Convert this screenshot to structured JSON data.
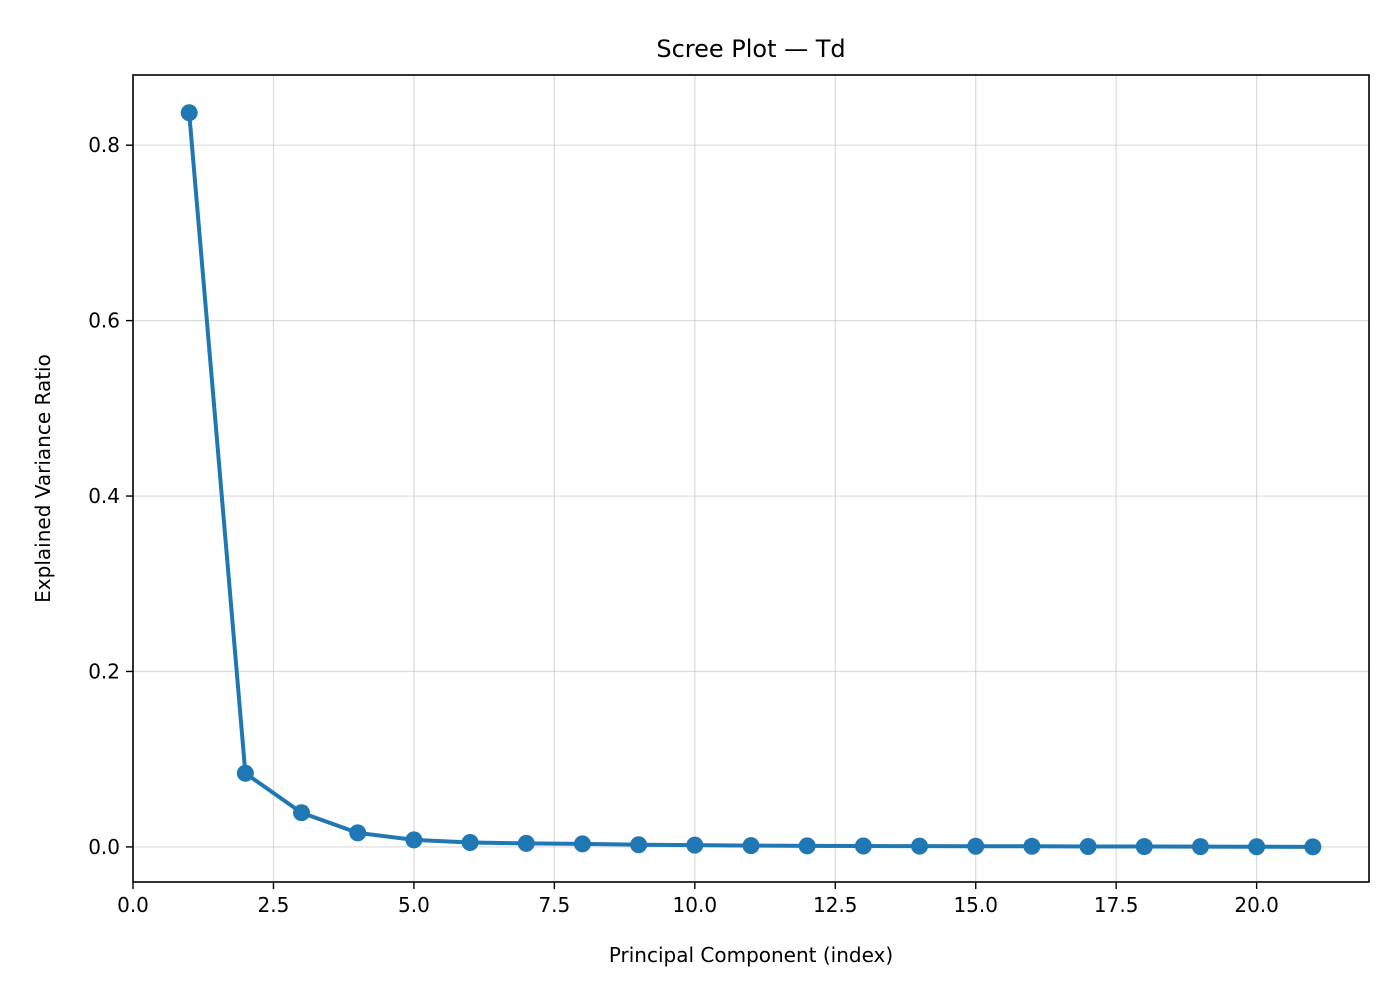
{
  "chart_data": {
    "type": "line",
    "title": "Scree Plot — Td",
    "xlabel": "Principal Component (index)",
    "ylabel": "Explained Variance Ratio",
    "xlim": [
      0,
      22
    ],
    "ylim": [
      -0.04,
      0.88
    ],
    "x_ticks": [
      0.0,
      2.5,
      5.0,
      7.5,
      10.0,
      12.5,
      15.0,
      17.5,
      20.0
    ],
    "x_tick_labels": [
      "0.0",
      "2.5",
      "5.0",
      "7.5",
      "10.0",
      "12.5",
      "15.0",
      "17.5",
      "20.0"
    ],
    "y_ticks": [
      0.0,
      0.2,
      0.4,
      0.6,
      0.8
    ],
    "y_tick_labels": [
      "0.0",
      "0.2",
      "0.4",
      "0.6",
      "0.8"
    ],
    "grid": true,
    "series": [
      {
        "color": "#1f77b4",
        "marker": "circle",
        "x": [
          1,
          2,
          3,
          4,
          5,
          6,
          7,
          8,
          9,
          10,
          11,
          12,
          13,
          14,
          15,
          16,
          17,
          18,
          19,
          20,
          21
        ],
        "y": [
          0.837,
          0.084,
          0.039,
          0.016,
          0.008,
          0.005,
          0.004,
          0.0035,
          0.0025,
          0.002,
          0.0015,
          0.0012,
          0.001,
          0.0009,
          0.0008,
          0.0007,
          0.0005,
          0.0004,
          0.0003,
          0.0002,
          0.0001
        ]
      }
    ]
  }
}
